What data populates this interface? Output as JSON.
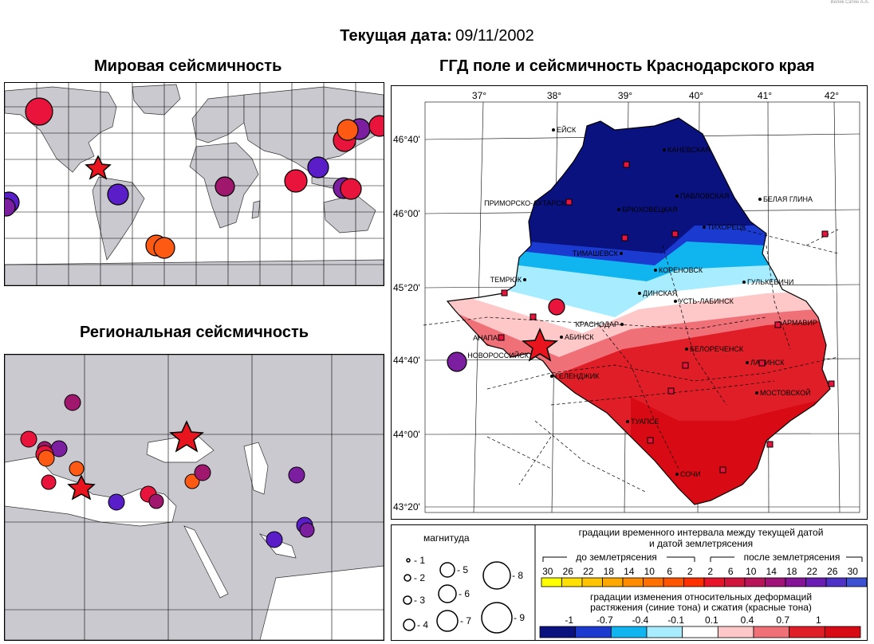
{
  "credit": "Вилик Сатин А.А.",
  "header": {
    "date_label": "Текущая дата:",
    "date_value": "09/11/2002"
  },
  "titles": {
    "world": "Мировая сейсмичность",
    "regional": "Региональная сейсмичность",
    "krasnodar": "ГГД поле и сейсмичность Краснодарского края"
  },
  "colors": {
    "land": "#c9c9cf",
    "ocean": "#ffffff",
    "event_red": "#e8143c",
    "event_orange": "#ff5a14",
    "event_purple": "#7b1fa0",
    "event_magenta": "#a0186e",
    "event_violet": "#5a1ec8",
    "star": "#e8141e"
  },
  "krasnodar_map": {
    "lon_labels": [
      "37°",
      "38°",
      "39°",
      "40°",
      "41°",
      "42°"
    ],
    "lat_labels": [
      "46°40'",
      "46°00'",
      "45°20'",
      "44°40'",
      "44°00'",
      "43°20'"
    ],
    "cities": [
      {
        "name": "ЕЙСК"
      },
      {
        "name": "КАНЕВСКАЯ"
      },
      {
        "name": "ПАВЛОВСКАЯ"
      },
      {
        "name": "БЕЛАЯ ГЛИНА"
      },
      {
        "name": "ПРИМОРСКО-АХТАРСК"
      },
      {
        "name": "БРЮХОВЕЦКАЯ"
      },
      {
        "name": "ТИХОРЕЦК"
      },
      {
        "name": "ТИМАШЕВСК"
      },
      {
        "name": "КОРЕНОВСК"
      },
      {
        "name": "ТЕМРЮК"
      },
      {
        "name": "ГУЛЬКЕВИЧИ"
      },
      {
        "name": "ДИНСКАЯ"
      },
      {
        "name": "УСТЬ-ЛАБИНСК"
      },
      {
        "name": "КРАСНОДАР"
      },
      {
        "name": "АРМАВИР"
      },
      {
        "name": "АНАПА"
      },
      {
        "name": "АБИНСК"
      },
      {
        "name": "БЕЛОРЕЧЕНСК"
      },
      {
        "name": "НОВОРОССИЙСК"
      },
      {
        "name": "ЛАБИНСК"
      },
      {
        "name": "ГЕЛЕНДЖИК"
      },
      {
        "name": "МОСТОВСКОЙ"
      },
      {
        "name": "ТУАПСЕ"
      },
      {
        "name": "СОЧИ"
      }
    ]
  },
  "legend": {
    "magnitude_title": "магнитуда",
    "magnitudes": [
      "- 1",
      "- 2",
      "- 3",
      "- 4",
      "- 5",
      "- 6",
      "- 7",
      "- 8",
      "- 9"
    ],
    "time_title_1": "градации временного интервала между текущей датой",
    "time_title_2": "и датой землетрясения",
    "before_label": "до землетрясения",
    "after_label": "после землетрясения",
    "time_ticks": [
      "30",
      "26",
      "22",
      "18",
      "14",
      "10",
      "6",
      "2",
      "2",
      "6",
      "10",
      "14",
      "18",
      "22",
      "26",
      "30"
    ],
    "time_colors": [
      "#ffff00",
      "#ffe000",
      "#ffc400",
      "#ffa800",
      "#ff8c00",
      "#ff7000",
      "#ff5400",
      "#ff3000",
      "#e8142a",
      "#d0143c",
      "#b8145a",
      "#a01478",
      "#861496",
      "#6a1eb4",
      "#4e32c8",
      "#3c50d2"
    ],
    "deform_title_1": "градации изменения относительных деформаций",
    "deform_title_2": "растяжения (синие тона) и сжатия (красные тона)",
    "deform_ticks": [
      "-1",
      "-0.7",
      "-0.4",
      "-0.1",
      "0.1",
      "0.4",
      "0.7",
      "1"
    ],
    "deform_colors": [
      "#0a1280",
      "#1a3ad0",
      "#10b4ee",
      "#a8ecff",
      "#ffffff",
      "#ffc8c8",
      "#f07078",
      "#e01e28",
      "#d80a14"
    ]
  }
}
